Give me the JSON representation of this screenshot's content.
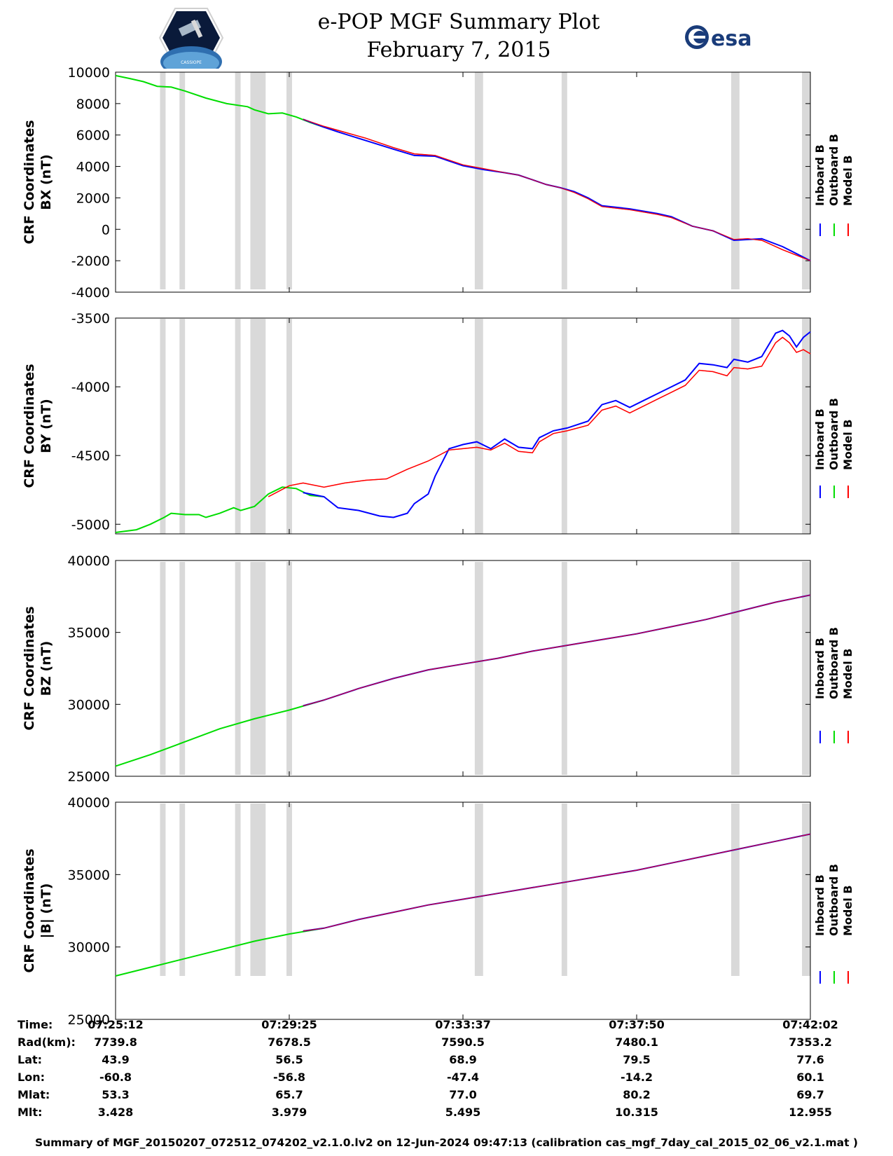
{
  "header": {
    "title_line1": "e-POP MGF Summary Plot",
    "title_line2": "February 7, 2015",
    "logo_left": "cassiope-mission-logo",
    "logo_left_text": "CASSIOPE",
    "logo_right": "esa-logo",
    "logo_right_text": "esa"
  },
  "colors": {
    "inboard": "#0000ff",
    "outboard": "#00dd00",
    "model": "#ff0000",
    "gap": "#d9d9d9"
  },
  "chart_data": [
    {
      "type": "line",
      "ylabel_line1": "CRF Coordinates",
      "ylabel_line2": "BX (nT)",
      "ylim": [
        -4000,
        10000
      ],
      "yticks": [
        10000,
        8000,
        6000,
        4000,
        2000,
        0,
        -2000,
        -4000
      ],
      "ytick_labels": [
        "10000",
        "8000",
        "6000",
        "4000",
        "2000",
        "0",
        "-2000",
        "-4000"
      ],
      "legend": [
        "Inboard B",
        "Outboard B",
        "Model B"
      ],
      "outboard": [
        [
          0.0,
          9780
        ],
        [
          0.02,
          9600
        ],
        [
          0.04,
          9400
        ],
        [
          0.06,
          9100
        ],
        [
          0.08,
          9050
        ],
        [
          0.1,
          8800
        ],
        [
          0.13,
          8350
        ],
        [
          0.16,
          8000
        ],
        [
          0.19,
          7800
        ],
        [
          0.2,
          7600
        ],
        [
          0.22,
          7350
        ],
        [
          0.24,
          7400
        ],
        [
          0.26,
          7150
        ],
        [
          0.28,
          6800
        ],
        [
          0.3,
          6500
        ],
        [
          0.305,
          6450
        ]
      ],
      "inboard": [
        [
          0.27,
          7000
        ],
        [
          0.3,
          6500
        ],
        [
          0.32,
          6200
        ],
        [
          0.36,
          5650
        ],
        [
          0.4,
          5100
        ],
        [
          0.43,
          4700
        ],
        [
          0.46,
          4650
        ],
        [
          0.5,
          4050
        ],
        [
          0.53,
          3800
        ],
        [
          0.56,
          3600
        ],
        [
          0.58,
          3450
        ],
        [
          0.6,
          3150
        ],
        [
          0.62,
          2850
        ],
        [
          0.64,
          2650
        ],
        [
          0.66,
          2400
        ],
        [
          0.68,
          2000
        ],
        [
          0.7,
          1500
        ],
        [
          0.74,
          1300
        ],
        [
          0.78,
          1000
        ],
        [
          0.8,
          800
        ],
        [
          0.83,
          200
        ],
        [
          0.86,
          -100
        ],
        [
          0.89,
          -700
        ],
        [
          0.91,
          -650
        ],
        [
          0.93,
          -600
        ],
        [
          0.96,
          -1100
        ],
        [
          1.0,
          -2000
        ]
      ],
      "model": [
        [
          0.27,
          7000
        ],
        [
          0.3,
          6550
        ],
        [
          0.32,
          6300
        ],
        [
          0.36,
          5800
        ],
        [
          0.4,
          5200
        ],
        [
          0.43,
          4800
        ],
        [
          0.46,
          4700
        ],
        [
          0.5,
          4100
        ],
        [
          0.53,
          3850
        ],
        [
          0.56,
          3600
        ],
        [
          0.58,
          3450
        ],
        [
          0.6,
          3150
        ],
        [
          0.62,
          2850
        ],
        [
          0.64,
          2650
        ],
        [
          0.66,
          2350
        ],
        [
          0.68,
          1950
        ],
        [
          0.7,
          1450
        ],
        [
          0.74,
          1250
        ],
        [
          0.78,
          950
        ],
        [
          0.8,
          750
        ],
        [
          0.83,
          200
        ],
        [
          0.86,
          -100
        ],
        [
          0.89,
          -650
        ],
        [
          0.91,
          -600
        ],
        [
          0.93,
          -700
        ],
        [
          0.96,
          -1300
        ],
        [
          1.0,
          -2000
        ]
      ]
    },
    {
      "type": "line",
      "ylabel_line1": "CRF Coordinates",
      "ylabel_line2": "BY (nT)",
      "ylim": [
        -5070,
        -3500
      ],
      "yticks": [
        -3500,
        -4000,
        -4500,
        -5000
      ],
      "ytick_labels": [
        "-3500",
        "-4000",
        "-4500",
        "-5000"
      ],
      "legend": [
        "Inboard B",
        "Outboard B",
        "Model B"
      ],
      "outboard": [
        [
          0.0,
          -5060
        ],
        [
          0.03,
          -5040
        ],
        [
          0.05,
          -5000
        ],
        [
          0.07,
          -4950
        ],
        [
          0.08,
          -4920
        ],
        [
          0.1,
          -4930
        ],
        [
          0.12,
          -4930
        ],
        [
          0.13,
          -4950
        ],
        [
          0.15,
          -4920
        ],
        [
          0.17,
          -4880
        ],
        [
          0.18,
          -4900
        ],
        [
          0.2,
          -4870
        ],
        [
          0.22,
          -4780
        ],
        [
          0.24,
          -4730
        ],
        [
          0.26,
          -4740
        ],
        [
          0.28,
          -4790
        ],
        [
          0.3,
          -4800
        ]
      ],
      "inboard": [
        [
          0.27,
          -4770
        ],
        [
          0.3,
          -4800
        ],
        [
          0.32,
          -4880
        ],
        [
          0.35,
          -4900
        ],
        [
          0.38,
          -4940
        ],
        [
          0.4,
          -4950
        ],
        [
          0.42,
          -4920
        ],
        [
          0.43,
          -4850
        ],
        [
          0.45,
          -4780
        ],
        [
          0.46,
          -4650
        ],
        [
          0.48,
          -4450
        ],
        [
          0.5,
          -4420
        ],
        [
          0.52,
          -4400
        ],
        [
          0.54,
          -4450
        ],
        [
          0.56,
          -4380
        ],
        [
          0.58,
          -4440
        ],
        [
          0.6,
          -4450
        ],
        [
          0.61,
          -4370
        ],
        [
          0.63,
          -4320
        ],
        [
          0.65,
          -4300
        ],
        [
          0.68,
          -4250
        ],
        [
          0.7,
          -4130
        ],
        [
          0.72,
          -4100
        ],
        [
          0.74,
          -4150
        ],
        [
          0.76,
          -4100
        ],
        [
          0.78,
          -4050
        ],
        [
          0.8,
          -4000
        ],
        [
          0.82,
          -3950
        ],
        [
          0.84,
          -3830
        ],
        [
          0.86,
          -3840
        ],
        [
          0.88,
          -3860
        ],
        [
          0.89,
          -3800
        ],
        [
          0.91,
          -3820
        ],
        [
          0.92,
          -3800
        ],
        [
          0.93,
          -3780
        ],
        [
          0.95,
          -3610
        ],
        [
          0.96,
          -3590
        ],
        [
          0.97,
          -3630
        ],
        [
          0.98,
          -3710
        ],
        [
          0.99,
          -3640
        ],
        [
          1.0,
          -3600
        ]
      ],
      "model": [
        [
          0.22,
          -4800
        ],
        [
          0.25,
          -4720
        ],
        [
          0.27,
          -4700
        ],
        [
          0.3,
          -4730
        ],
        [
          0.33,
          -4700
        ],
        [
          0.36,
          -4680
        ],
        [
          0.39,
          -4670
        ],
        [
          0.42,
          -4600
        ],
        [
          0.45,
          -4540
        ],
        [
          0.48,
          -4460
        ],
        [
          0.5,
          -4450
        ],
        [
          0.52,
          -4440
        ],
        [
          0.54,
          -4460
        ],
        [
          0.56,
          -4410
        ],
        [
          0.58,
          -4470
        ],
        [
          0.6,
          -4480
        ],
        [
          0.61,
          -4400
        ],
        [
          0.63,
          -4340
        ],
        [
          0.65,
          -4320
        ],
        [
          0.68,
          -4280
        ],
        [
          0.7,
          -4170
        ],
        [
          0.72,
          -4140
        ],
        [
          0.74,
          -4190
        ],
        [
          0.76,
          -4140
        ],
        [
          0.78,
          -4090
        ],
        [
          0.8,
          -4040
        ],
        [
          0.82,
          -3990
        ],
        [
          0.84,
          -3880
        ],
        [
          0.86,
          -3890
        ],
        [
          0.88,
          -3920
        ],
        [
          0.89,
          -3860
        ],
        [
          0.91,
          -3870
        ],
        [
          0.92,
          -3860
        ],
        [
          0.93,
          -3850
        ],
        [
          0.95,
          -3680
        ],
        [
          0.96,
          -3640
        ],
        [
          0.97,
          -3680
        ],
        [
          0.98,
          -3750
        ],
        [
          0.99,
          -3730
        ],
        [
          1.0,
          -3760
        ]
      ]
    },
    {
      "type": "line",
      "ylabel_line1": "CRF Coordinates",
      "ylabel_line2": "BZ (nT)",
      "ylim": [
        25000,
        40000
      ],
      "yticks": [
        40000,
        35000,
        30000,
        25000
      ],
      "ytick_labels": [
        "40000",
        "35000",
        "30000",
        "25000"
      ],
      "legend": [
        "Inboard B",
        "Outboard B",
        "Model B"
      ],
      "outboard": [
        [
          0.0,
          25700
        ],
        [
          0.05,
          26500
        ],
        [
          0.1,
          27400
        ],
        [
          0.15,
          28300
        ],
        [
          0.2,
          29000
        ],
        [
          0.25,
          29600
        ],
        [
          0.3,
          30300
        ]
      ],
      "inboard": [
        [
          0.27,
          29900
        ],
        [
          0.3,
          30300
        ],
        [
          0.35,
          31100
        ],
        [
          0.4,
          31800
        ],
        [
          0.45,
          32400
        ],
        [
          0.5,
          32800
        ],
        [
          0.55,
          33200
        ],
        [
          0.6,
          33700
        ],
        [
          0.65,
          34100
        ],
        [
          0.7,
          34500
        ],
        [
          0.75,
          34900
        ],
        [
          0.8,
          35400
        ],
        [
          0.85,
          35900
        ],
        [
          0.9,
          36500
        ],
        [
          0.95,
          37100
        ],
        [
          1.0,
          37600
        ]
      ],
      "model": [
        [
          0.27,
          29900
        ],
        [
          0.3,
          30300
        ],
        [
          0.35,
          31100
        ],
        [
          0.4,
          31800
        ],
        [
          0.45,
          32400
        ],
        [
          0.5,
          32800
        ],
        [
          0.55,
          33200
        ],
        [
          0.6,
          33700
        ],
        [
          0.65,
          34100
        ],
        [
          0.7,
          34500
        ],
        [
          0.75,
          34900
        ],
        [
          0.8,
          35400
        ],
        [
          0.85,
          35900
        ],
        [
          0.9,
          36500
        ],
        [
          0.95,
          37100
        ],
        [
          1.0,
          37600
        ]
      ]
    },
    {
      "type": "line",
      "ylabel_line1": "CRF Coordinates",
      "ylabel_line2": "|B| (nT)",
      "ylim": [
        25000,
        40000
      ],
      "yticks": [
        40000,
        35000,
        30000,
        25000
      ],
      "ytick_labels": [
        "40000",
        "35000",
        "30000",
        "25000"
      ],
      "legend": [
        "Inboard B",
        "Outboard B",
        "Model B"
      ],
      "outboard": [
        [
          0.0,
          28000
        ],
        [
          0.05,
          28600
        ],
        [
          0.1,
          29200
        ],
        [
          0.15,
          29800
        ],
        [
          0.2,
          30400
        ],
        [
          0.25,
          30900
        ],
        [
          0.3,
          31300
        ]
      ],
      "inboard": [
        [
          0.27,
          31100
        ],
        [
          0.3,
          31300
        ],
        [
          0.35,
          31900
        ],
        [
          0.4,
          32400
        ],
        [
          0.45,
          32900
        ],
        [
          0.5,
          33300
        ],
        [
          0.55,
          33700
        ],
        [
          0.6,
          34100
        ],
        [
          0.65,
          34500
        ],
        [
          0.7,
          34900
        ],
        [
          0.75,
          35300
        ],
        [
          0.8,
          35800
        ],
        [
          0.85,
          36300
        ],
        [
          0.9,
          36800
        ],
        [
          0.95,
          37300
        ],
        [
          1.0,
          37800
        ]
      ],
      "model": [
        [
          0.27,
          31100
        ],
        [
          0.3,
          31300
        ],
        [
          0.35,
          31900
        ],
        [
          0.4,
          32400
        ],
        [
          0.45,
          32900
        ],
        [
          0.5,
          33300
        ],
        [
          0.55,
          33700
        ],
        [
          0.6,
          34100
        ],
        [
          0.65,
          34500
        ],
        [
          0.7,
          34900
        ],
        [
          0.75,
          35300
        ],
        [
          0.8,
          35800
        ],
        [
          0.85,
          36300
        ],
        [
          0.9,
          36800
        ],
        [
          0.95,
          37300
        ],
        [
          1.0,
          37800
        ]
      ]
    }
  ],
  "data_gaps": [
    [
      0.064,
      0.072
    ],
    [
      0.092,
      0.1
    ],
    [
      0.172,
      0.18
    ],
    [
      0.194,
      0.216
    ],
    [
      0.246,
      0.254
    ],
    [
      0.517,
      0.529
    ],
    [
      0.642,
      0.65
    ],
    [
      0.886,
      0.898
    ],
    [
      0.988,
      1.0
    ]
  ],
  "orbit_table": {
    "row_labels": [
      "Time:",
      "Rad(km):",
      "Lat:",
      "Lon:",
      "Mlat:",
      "Mlt:"
    ],
    "columns": [
      [
        "07:25:12",
        "7739.8",
        "43.9",
        "-60.8",
        "53.3",
        "3.428"
      ],
      [
        "07:29:25",
        "7678.5",
        "56.5",
        "-56.8",
        "65.7",
        "3.979"
      ],
      [
        "07:33:37",
        "7590.5",
        "68.9",
        "-47.4",
        "77.0",
        "5.495"
      ],
      [
        "07:37:50",
        "7480.1",
        "79.5",
        "-14.2",
        "80.2",
        "10.315"
      ],
      [
        "07:42:02",
        "7353.2",
        "77.6",
        "60.1",
        "69.7",
        "12.955"
      ]
    ]
  },
  "footer": "Summary of MGF_20150207_072512_074202_v2.1.0.lv2 on 12-Jun-2024 09:47:13 (calibration cas_mgf_7day_cal_2015_02_06_v2.1.mat )"
}
